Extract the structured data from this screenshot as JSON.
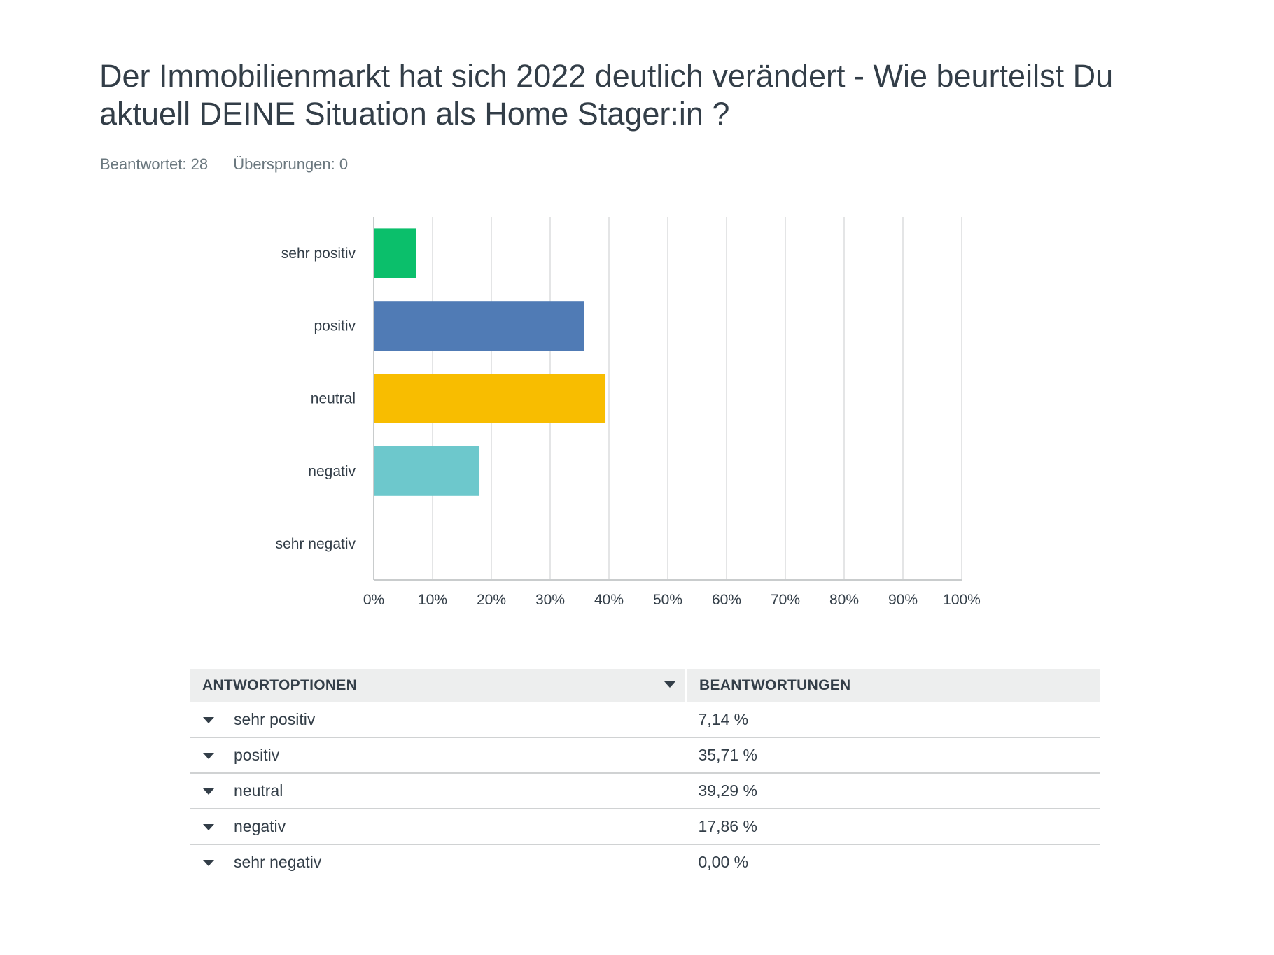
{
  "question": {
    "title": "Der Immobilienmarkt hat sich 2022 deutlich verändert - Wie beurteilst Du aktuell DEINE Situation als Home Stager:in ?",
    "answered": "Beantwortet: 28",
    "skipped": "Übersprungen: 0"
  },
  "chart_data": {
    "type": "bar",
    "orientation": "horizontal",
    "categories": [
      "sehr positiv",
      "positiv",
      "neutral",
      "negativ",
      "sehr negativ"
    ],
    "values": [
      7.14,
      35.71,
      39.29,
      17.86,
      0.0
    ],
    "colors": [
      "#0bbf6b",
      "#507bb5",
      "#f8bd00",
      "#6dc8cc",
      "#d25f90"
    ],
    "xlim": [
      0,
      100
    ],
    "xticks": [
      "0%",
      "10%",
      "20%",
      "30%",
      "40%",
      "50%",
      "60%",
      "70%",
      "80%",
      "90%",
      "100%"
    ],
    "grid": true,
    "title": "",
    "xlabel": "",
    "ylabel": ""
  },
  "table": {
    "header_option": "ANTWORTOPTIONEN",
    "header_responses": "BEANTWORTUNGEN",
    "rows": [
      {
        "option": "sehr positiv",
        "value": "7,14 %"
      },
      {
        "option": "positiv",
        "value": "35,71 %"
      },
      {
        "option": "neutral",
        "value": "39,29 %"
      },
      {
        "option": "negativ",
        "value": "17,86 %"
      },
      {
        "option": "sehr negativ",
        "value": "0,00 %"
      }
    ]
  }
}
